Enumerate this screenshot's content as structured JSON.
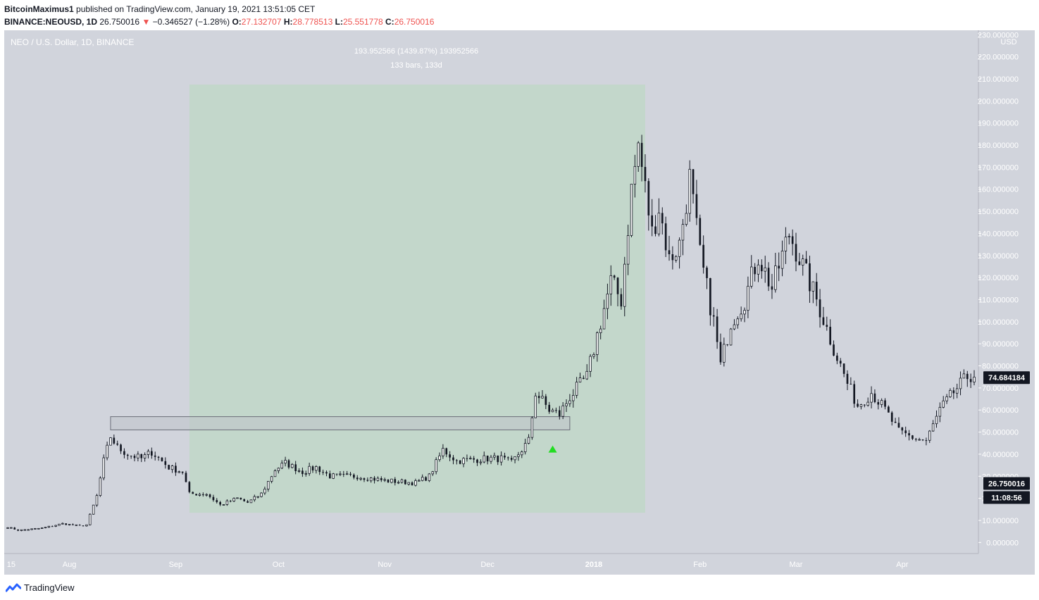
{
  "header": {
    "author": "BitcoinMaximus1",
    "published": "published on TradingView.com, January 19, 2021 13:51:05 CET",
    "symbol": "BINANCE:NEOUSD, 1D",
    "last": "26.750016",
    "arrow": "▼",
    "change": "−0.346527 (−1.28%)",
    "o_label": "O:",
    "o_value": "27.132707",
    "h_label": "H:",
    "h_value": "28.778513",
    "l_label": "L:",
    "l_value": "25.551778",
    "c_label": "C:",
    "c_value": "26.750016"
  },
  "footer": {
    "brand": "TradingView"
  },
  "colors": {
    "plot_bg": "#d1d4dc",
    "measure_fill": "#c3d7cb",
    "candle": "#131722",
    "marker": "#22dd22",
    "box_fill": "#bfc3cb"
  },
  "chart_data": {
    "type": "candlestick",
    "title": "NEO / U.S. Dollar, 1D, BINANCE",
    "currency_label": "USD",
    "ylim": [
      -5,
      232
    ],
    "y_ticks": [
      "0.000000",
      "10.000000",
      "20.000000",
      "30.000000",
      "40.000000",
      "50.000000",
      "60.000000",
      "70.000000",
      "80.000000",
      "90.000000",
      "100.000000",
      "110.000000",
      "120.000000",
      "130.000000",
      "140.000000",
      "150.000000",
      "160.000000",
      "170.000000",
      "180.000000",
      "190.000000",
      "200.000000",
      "210.000000",
      "220.000000",
      "230.000000"
    ],
    "x_ticks": [
      {
        "label": "15",
        "date": "2017-07-15"
      },
      {
        "label": "Aug",
        "date": "2017-08-01"
      },
      {
        "label": "Sep",
        "date": "2017-09-01"
      },
      {
        "label": "Oct",
        "date": "2017-10-01"
      },
      {
        "label": "Nov",
        "date": "2017-11-01"
      },
      {
        "label": "Dec",
        "date": "2017-12-01"
      },
      {
        "label": "2018",
        "date": "2018-01-01"
      },
      {
        "label": "Feb",
        "date": "2018-02-01"
      },
      {
        "label": "Mar",
        "date": "2018-03-01"
      },
      {
        "label": "Apr",
        "date": "2018-04-01"
      }
    ],
    "x_range": [
      "2017-07-14",
      "2018-04-22"
    ],
    "price_labels": {
      "current": "74.684184",
      "last_close": "26.750016",
      "countdown": "11:08:56"
    },
    "price_values": {
      "current": 74.684184,
      "last_close": 26.750016
    },
    "measurement": {
      "text1": "193.952566 (1439.87%) 193952566",
      "text2": "133 bars, 133d",
      "start_date": "2017-09-05",
      "end_date": "2018-01-16",
      "low": 13.47,
      "high": 207.43
    },
    "resistance_zone": {
      "start_date": "2017-08-13",
      "end_date": "2017-12-25",
      "low": 51,
      "high": 57
    },
    "marker": {
      "date": "2017-12-20",
      "value": 42
    },
    "anchors": [
      [
        "2017-07-14",
        7
      ],
      [
        "2017-07-17",
        5.5
      ],
      [
        "2017-07-24",
        6.5
      ],
      [
        "2017-07-30",
        8.5
      ],
      [
        "2017-08-04",
        7.5
      ],
      [
        "2017-08-06",
        8
      ],
      [
        "2017-08-09",
        21
      ],
      [
        "2017-08-11",
        37
      ],
      [
        "2017-08-13",
        48
      ],
      [
        "2017-08-15",
        43
      ],
      [
        "2017-08-18",
        40
      ],
      [
        "2017-08-22",
        38
      ],
      [
        "2017-08-25",
        41
      ],
      [
        "2017-08-30",
        34
      ],
      [
        "2017-09-03",
        32
      ],
      [
        "2017-09-05",
        22
      ],
      [
        "2017-09-10",
        22
      ],
      [
        "2017-09-14",
        17
      ],
      [
        "2017-09-19",
        20
      ],
      [
        "2017-09-22",
        18
      ],
      [
        "2017-09-26",
        22
      ],
      [
        "2017-09-30",
        33
      ],
      [
        "2017-10-03",
        36
      ],
      [
        "2017-10-08",
        32
      ],
      [
        "2017-10-12",
        34
      ],
      [
        "2017-10-16",
        30
      ],
      [
        "2017-10-24",
        30
      ],
      [
        "2017-11-01",
        28
      ],
      [
        "2017-11-10",
        27
      ],
      [
        "2017-11-14",
        30
      ],
      [
        "2017-11-18",
        42
      ],
      [
        "2017-11-22",
        37
      ],
      [
        "2017-12-01",
        38
      ],
      [
        "2017-12-05",
        38
      ],
      [
        "2017-12-08",
        36
      ],
      [
        "2017-12-13",
        46
      ],
      [
        "2017-12-15",
        68
      ],
      [
        "2017-12-19",
        60
      ],
      [
        "2017-12-22",
        58
      ],
      [
        "2017-12-25",
        66
      ],
      [
        "2017-12-30",
        75
      ],
      [
        "2018-01-03",
        100
      ],
      [
        "2018-01-06",
        118
      ],
      [
        "2018-01-09",
        110
      ],
      [
        "2018-01-12",
        160
      ],
      [
        "2018-01-14",
        180
      ],
      [
        "2018-01-16",
        160
      ],
      [
        "2018-01-18",
        140
      ],
      [
        "2018-01-20",
        152
      ],
      [
        "2018-01-23",
        128
      ],
      [
        "2018-01-26",
        135
      ],
      [
        "2018-01-29",
        165
      ],
      [
        "2018-02-01",
        130
      ],
      [
        "2018-02-05",
        100
      ],
      [
        "2018-02-07",
        80
      ],
      [
        "2018-02-10",
        100
      ],
      [
        "2018-02-14",
        110
      ],
      [
        "2018-02-18",
        130
      ],
      [
        "2018-02-22",
        115
      ],
      [
        "2018-02-27",
        140
      ],
      [
        "2018-03-03",
        125
      ],
      [
        "2018-03-07",
        110
      ],
      [
        "2018-03-12",
        88
      ],
      [
        "2018-03-16",
        72
      ],
      [
        "2018-03-19",
        62
      ],
      [
        "2018-03-23",
        68
      ],
      [
        "2018-03-27",
        60
      ],
      [
        "2018-03-31",
        50
      ],
      [
        "2018-04-05",
        47
      ],
      [
        "2018-04-08",
        46
      ],
      [
        "2018-04-12",
        60
      ],
      [
        "2018-04-16",
        68
      ],
      [
        "2018-04-20",
        75
      ],
      [
        "2018-04-22",
        76
      ]
    ]
  }
}
